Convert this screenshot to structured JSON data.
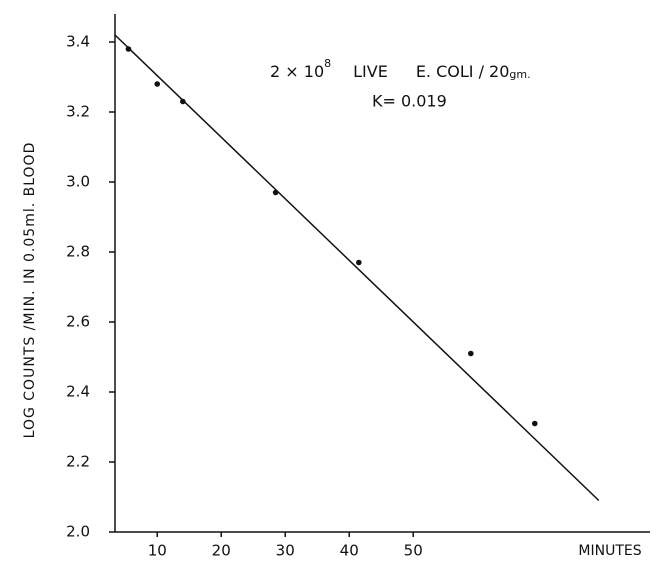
{
  "chart_data": {
    "type": "scatter",
    "y_label": "LOG COUNTS /MIN. IN 0.05ml. BLOOD",
    "x_label": "MINUTES",
    "annotation": {
      "base": "2 × 10",
      "exp": "8",
      "live": "LIVE",
      "organism": "E. COLI / 20",
      "unit": "gm.",
      "k": "K= 0.019"
    },
    "series": [
      {
        "color": "#111111",
        "mode": "points",
        "x": [
          5.5,
          10,
          14,
          28.5,
          41.5,
          59,
          69
        ],
        "values": [
          3.38,
          3.28,
          3.23,
          2.97,
          2.77,
          2.51,
          2.31
        ]
      },
      {
        "color": "#111111",
        "mode": "line",
        "x": [
          3.4,
          79
        ],
        "values": [
          3.42,
          2.09
        ]
      }
    ],
    "xlim": [
      3.4,
      87
    ],
    "xticks": [
      10,
      20,
      30,
      40,
      50
    ],
    "ylim": [
      2.0,
      3.48
    ],
    "yticks": [
      {
        "value": 2,
        "label": "2.0"
      },
      2.2,
      2.4,
      2.6,
      2.8,
      {
        "value": 3,
        "label": "3.0"
      },
      3.2,
      3.4
    ]
  }
}
